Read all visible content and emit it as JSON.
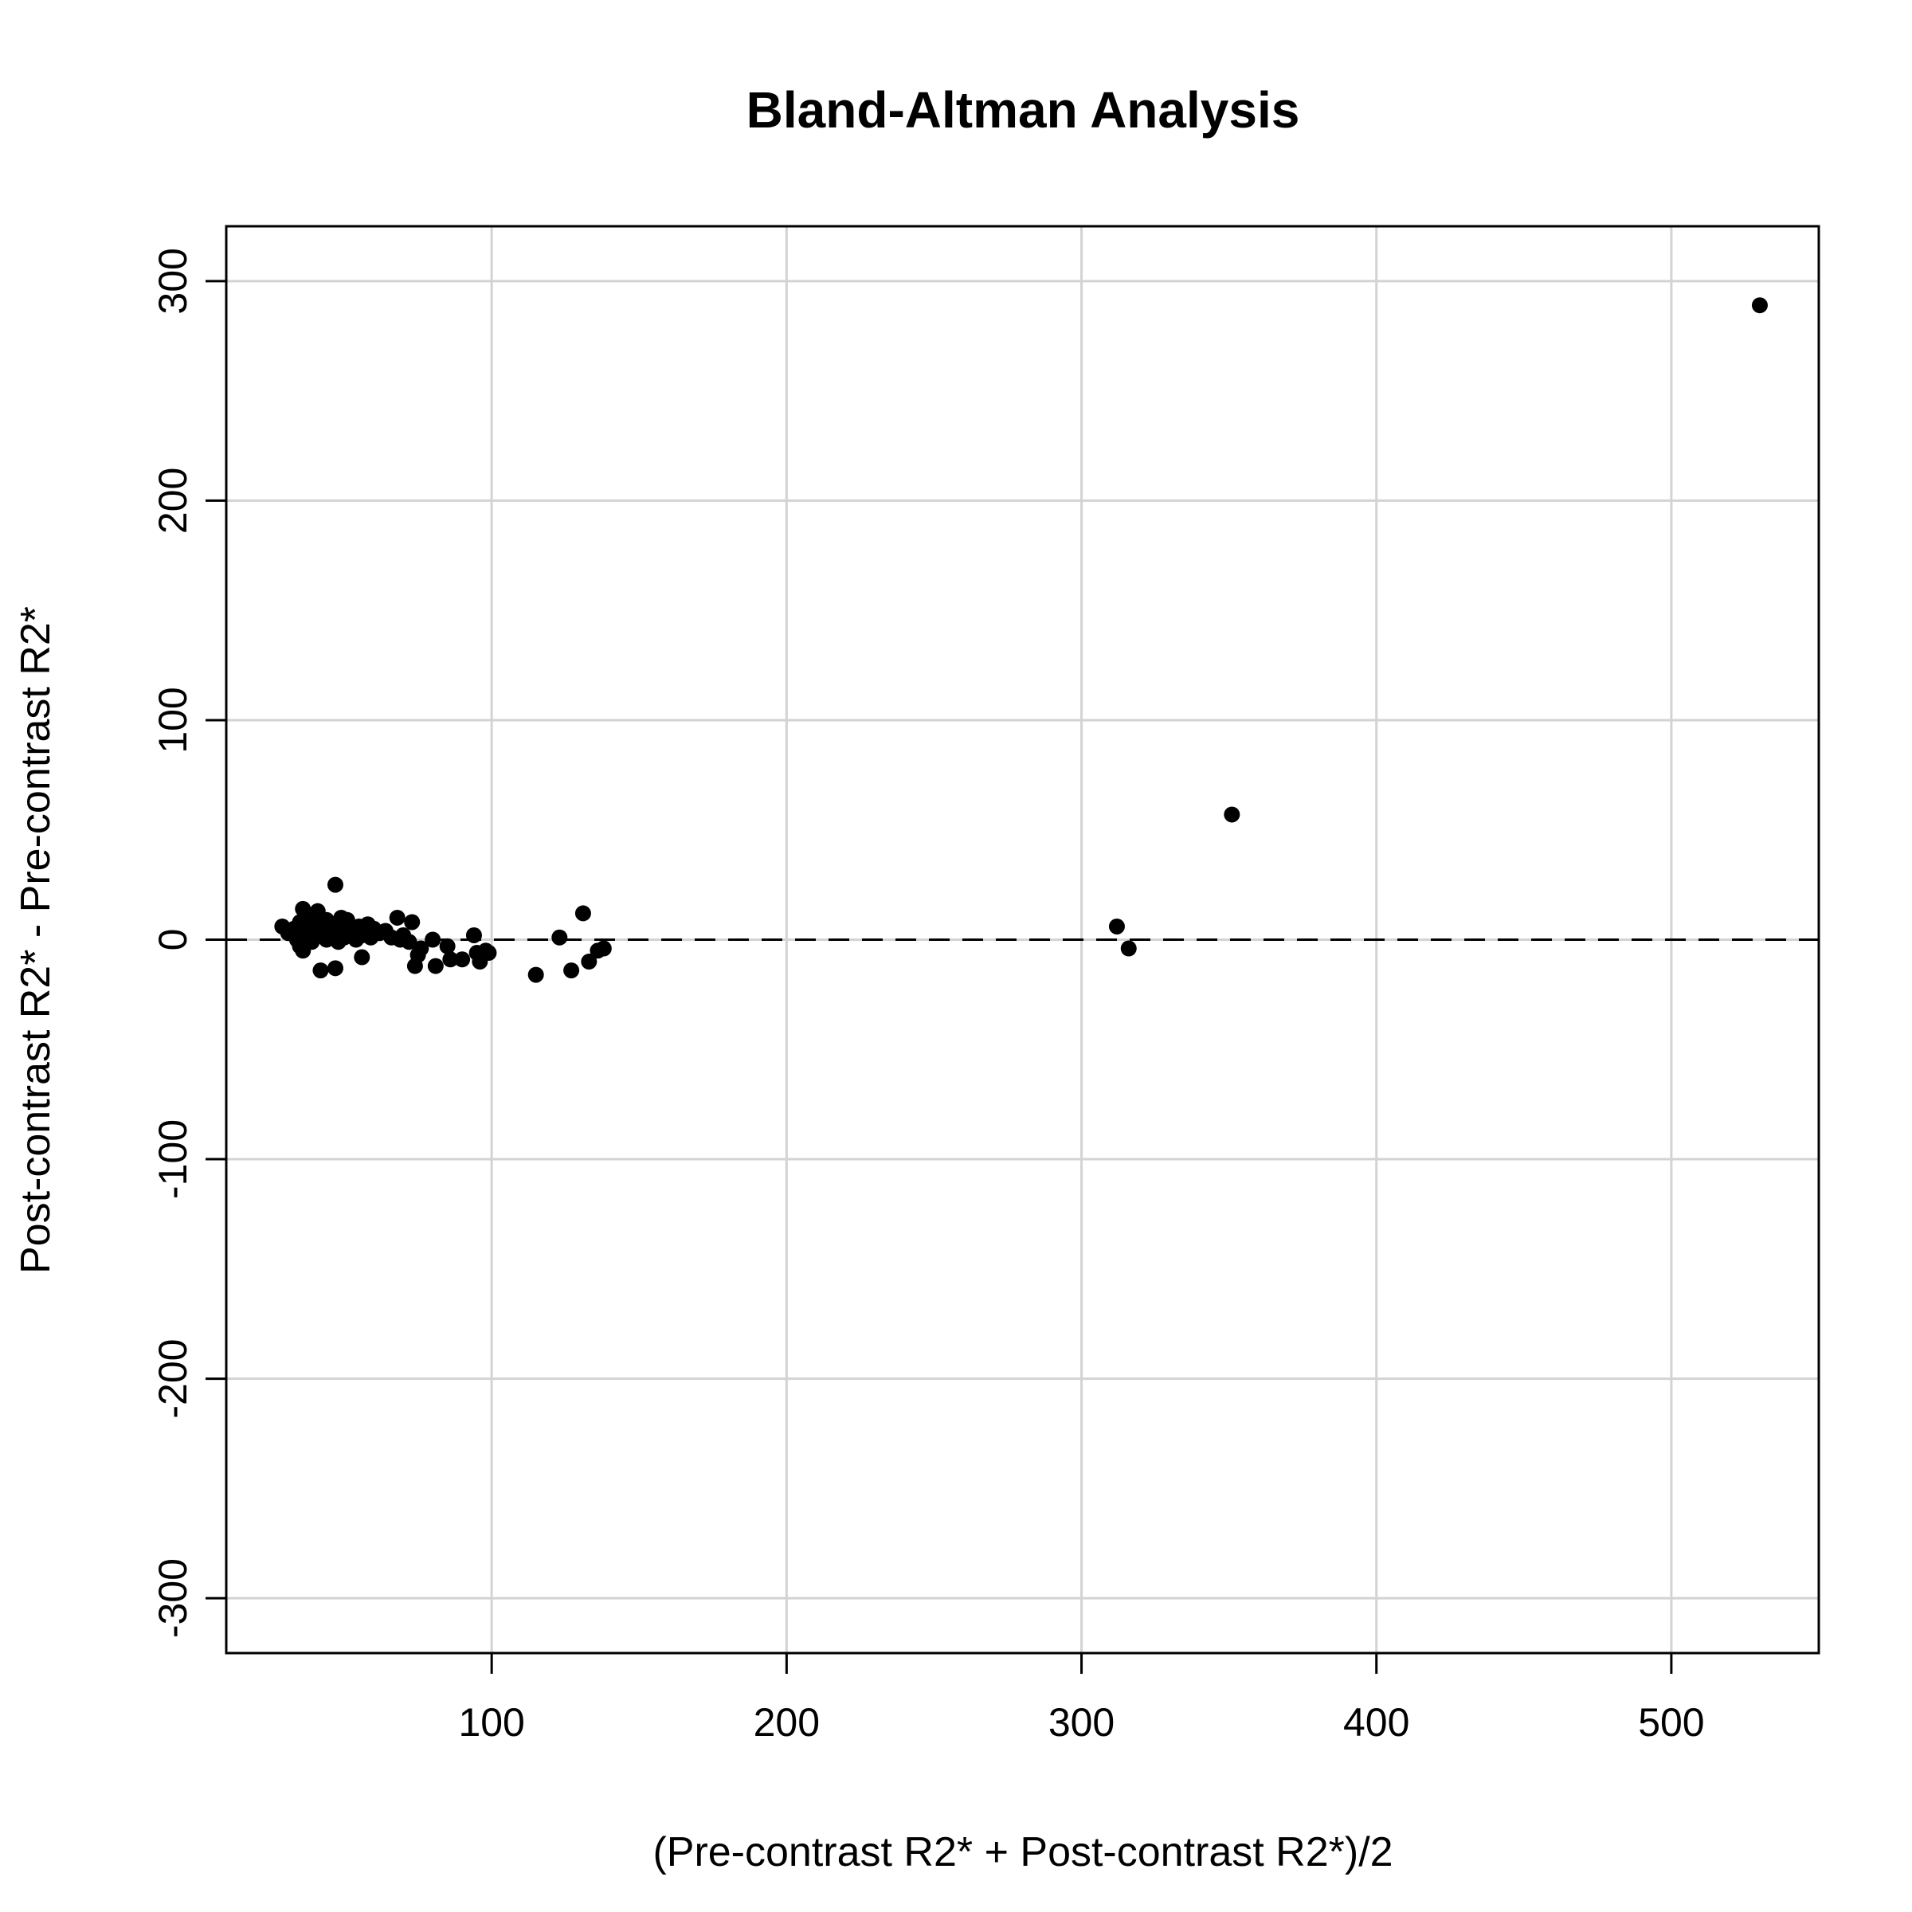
{
  "chart_data": {
    "type": "scatter",
    "title": "Bland-Altman Analysis",
    "xlabel": "(Pre-contrast R2* + Post-contrast R2*)/2",
    "ylabel": "Post-contrast R2* - Pre-contrast R2*",
    "xlim": [
      10,
      550
    ],
    "ylim": [
      -325,
      325
    ],
    "xticks": [
      100,
      200,
      300,
      400,
      500
    ],
    "yticks": [
      -300,
      -200,
      -100,
      0,
      100,
      200,
      300
    ],
    "grid": true,
    "reference_line": {
      "y": 0,
      "style": "dashed"
    },
    "points": [
      {
        "x": 29,
        "y": 6
      },
      {
        "x": 31,
        "y": 3
      },
      {
        "x": 33,
        "y": 5
      },
      {
        "x": 34,
        "y": 0
      },
      {
        "x": 35,
        "y": 8
      },
      {
        "x": 35,
        "y": -3
      },
      {
        "x": 36,
        "y": 14
      },
      {
        "x": 36,
        "y": -5
      },
      {
        "x": 37,
        "y": 2
      },
      {
        "x": 38,
        "y": 10
      },
      {
        "x": 38,
        "y": 6
      },
      {
        "x": 39,
        "y": -1
      },
      {
        "x": 40,
        "y": 4
      },
      {
        "x": 40,
        "y": 1
      },
      {
        "x": 41,
        "y": 8
      },
      {
        "x": 41,
        "y": 13
      },
      {
        "x": 42,
        "y": 7
      },
      {
        "x": 42,
        "y": -14
      },
      {
        "x": 43,
        "y": 3
      },
      {
        "x": 44,
        "y": 9
      },
      {
        "x": 44,
        "y": 0
      },
      {
        "x": 45,
        "y": 5
      },
      {
        "x": 46,
        "y": 2
      },
      {
        "x": 47,
        "y": 25
      },
      {
        "x": 47,
        "y": -13
      },
      {
        "x": 48,
        "y": 7
      },
      {
        "x": 48,
        "y": -1
      },
      {
        "x": 49,
        "y": 10
      },
      {
        "x": 50,
        "y": 4
      },
      {
        "x": 50,
        "y": 1
      },
      {
        "x": 51,
        "y": 9
      },
      {
        "x": 52,
        "y": 6
      },
      {
        "x": 53,
        "y": 3
      },
      {
        "x": 54,
        "y": 0
      },
      {
        "x": 55,
        "y": 6
      },
      {
        "x": 56,
        "y": 2
      },
      {
        "x": 56,
        "y": -8
      },
      {
        "x": 57,
        "y": 5
      },
      {
        "x": 58,
        "y": 7
      },
      {
        "x": 59,
        "y": 1
      },
      {
        "x": 60,
        "y": 5
      },
      {
        "x": 62,
        "y": 3
      },
      {
        "x": 64,
        "y": 4
      },
      {
        "x": 66,
        "y": 1
      },
      {
        "x": 68,
        "y": 10
      },
      {
        "x": 69,
        "y": 0
      },
      {
        "x": 70,
        "y": 2
      },
      {
        "x": 72,
        "y": -1
      },
      {
        "x": 73,
        "y": 8
      },
      {
        "x": 74,
        "y": -12
      },
      {
        "x": 75,
        "y": -7
      },
      {
        "x": 76,
        "y": -4
      },
      {
        "x": 80,
        "y": 0
      },
      {
        "x": 81,
        "y": -12
      },
      {
        "x": 85,
        "y": -3
      },
      {
        "x": 86,
        "y": -9
      },
      {
        "x": 90,
        "y": -9
      },
      {
        "x": 94,
        "y": 2
      },
      {
        "x": 95,
        "y": -6
      },
      {
        "x": 96,
        "y": -10
      },
      {
        "x": 98,
        "y": -5
      },
      {
        "x": 99,
        "y": -6
      },
      {
        "x": 115,
        "y": -16
      },
      {
        "x": 123,
        "y": 1
      },
      {
        "x": 127,
        "y": -14
      },
      {
        "x": 131,
        "y": 12
      },
      {
        "x": 133,
        "y": -10
      },
      {
        "x": 136,
        "y": -5
      },
      {
        "x": 138,
        "y": -4
      },
      {
        "x": 312,
        "y": 6
      },
      {
        "x": 316,
        "y": -4
      },
      {
        "x": 351,
        "y": 57
      },
      {
        "x": 530,
        "y": 289
      }
    ]
  }
}
